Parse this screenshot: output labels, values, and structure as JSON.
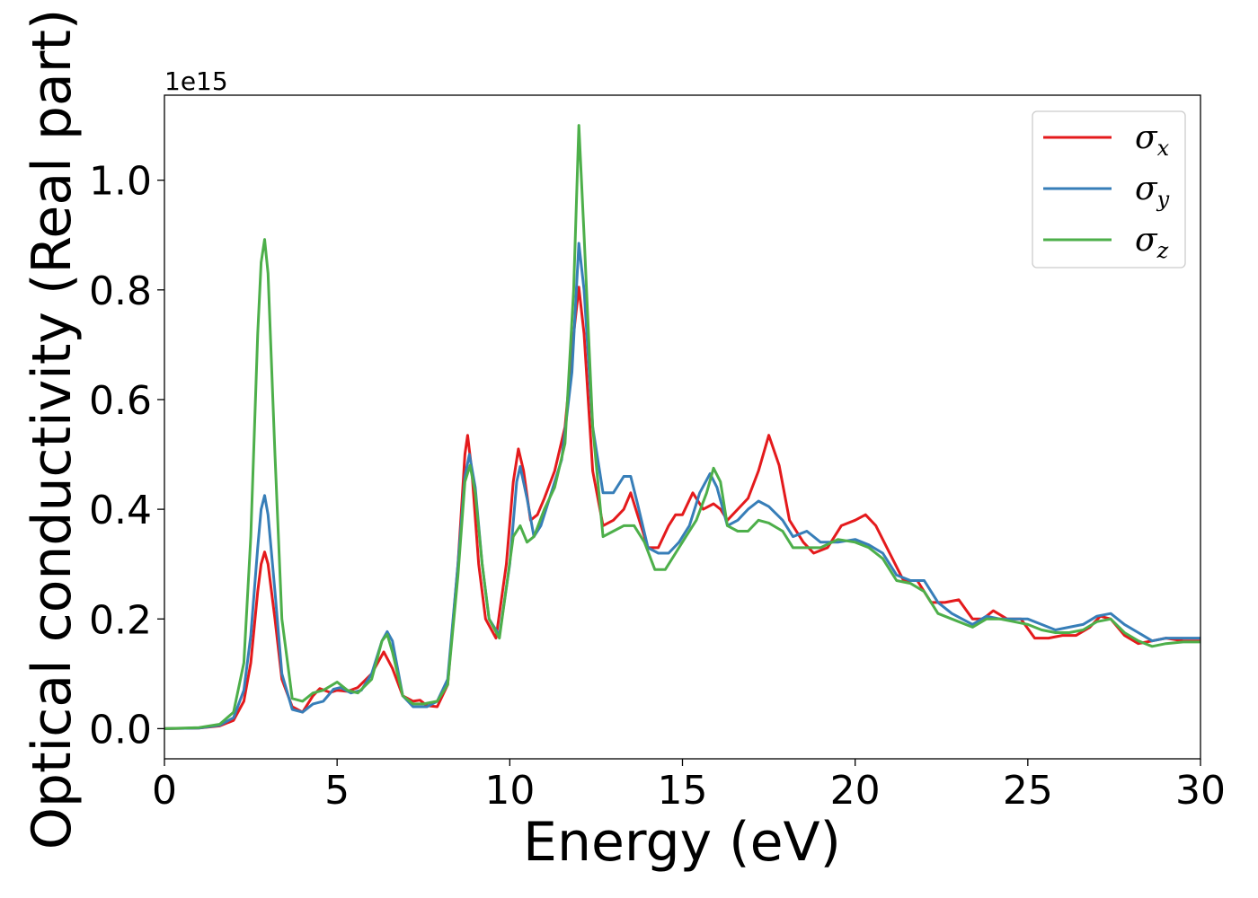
{
  "chart_data": {
    "type": "line",
    "title": "",
    "xlabel": "Energy (eV)",
    "ylabel": "Optical conductivity (Real part)",
    "y_offset_label": "1e15",
    "y_scale_factor": 1000000000000000.0,
    "xlim": [
      0,
      30
    ],
    "ylim": [
      -0.055,
      1.155
    ],
    "xticks": [
      0,
      5,
      10,
      15,
      20,
      25,
      30
    ],
    "xtick_labels": [
      "0",
      "5",
      "10",
      "15",
      "20",
      "25",
      "30"
    ],
    "yticks": [
      0.0,
      0.2,
      0.4,
      0.6,
      0.8,
      1.0
    ],
    "ytick_labels": [
      "0.0",
      "0.2",
      "0.4",
      "0.6",
      "0.8",
      "1.0"
    ],
    "grid": false,
    "legend_position": "top-right",
    "series": [
      {
        "name": "σx",
        "name_main": "σ",
        "name_sub": "x",
        "color": "#e41a1c",
        "points": [
          [
            0,
            0
          ],
          [
            1,
            0.001
          ],
          [
            1.6,
            0.005
          ],
          [
            2.0,
            0.015
          ],
          [
            2.3,
            0.05
          ],
          [
            2.5,
            0.12
          ],
          [
            2.7,
            0.25
          ],
          [
            2.8,
            0.3
          ],
          [
            2.9,
            0.322
          ],
          [
            3.0,
            0.3
          ],
          [
            3.2,
            0.2
          ],
          [
            3.4,
            0.09
          ],
          [
            3.7,
            0.04
          ],
          [
            4.0,
            0.03
          ],
          [
            4.3,
            0.06
          ],
          [
            4.5,
            0.073
          ],
          [
            4.8,
            0.066
          ],
          [
            5.0,
            0.07
          ],
          [
            5.3,
            0.068
          ],
          [
            5.6,
            0.075
          ],
          [
            6.0,
            0.1
          ],
          [
            6.35,
            0.14
          ],
          [
            6.6,
            0.11
          ],
          [
            6.9,
            0.06
          ],
          [
            7.2,
            0.05
          ],
          [
            7.4,
            0.052
          ],
          [
            7.6,
            0.042
          ],
          [
            7.9,
            0.04
          ],
          [
            8.2,
            0.08
          ],
          [
            8.5,
            0.3
          ],
          [
            8.7,
            0.5
          ],
          [
            8.78,
            0.535
          ],
          [
            8.9,
            0.47
          ],
          [
            9.1,
            0.3
          ],
          [
            9.3,
            0.2
          ],
          [
            9.6,
            0.165
          ],
          [
            9.9,
            0.3
          ],
          [
            10.1,
            0.45
          ],
          [
            10.25,
            0.51
          ],
          [
            10.4,
            0.47
          ],
          [
            10.6,
            0.38
          ],
          [
            10.8,
            0.39
          ],
          [
            11.0,
            0.42
          ],
          [
            11.3,
            0.47
          ],
          [
            11.6,
            0.55
          ],
          [
            11.85,
            0.72
          ],
          [
            12.0,
            0.805
          ],
          [
            12.15,
            0.72
          ],
          [
            12.4,
            0.47
          ],
          [
            12.7,
            0.37
          ],
          [
            13.0,
            0.38
          ],
          [
            13.3,
            0.4
          ],
          [
            13.5,
            0.43
          ],
          [
            13.7,
            0.39
          ],
          [
            14.0,
            0.33
          ],
          [
            14.3,
            0.33
          ],
          [
            14.6,
            0.37
          ],
          [
            14.8,
            0.39
          ],
          [
            15.0,
            0.39
          ],
          [
            15.3,
            0.43
          ],
          [
            15.6,
            0.4
          ],
          [
            15.9,
            0.41
          ],
          [
            16.1,
            0.4
          ],
          [
            16.3,
            0.38
          ],
          [
            16.6,
            0.4
          ],
          [
            16.9,
            0.42
          ],
          [
            17.2,
            0.47
          ],
          [
            17.5,
            0.535
          ],
          [
            17.8,
            0.48
          ],
          [
            18.1,
            0.38
          ],
          [
            18.5,
            0.34
          ],
          [
            18.8,
            0.32
          ],
          [
            19.2,
            0.33
          ],
          [
            19.6,
            0.37
          ],
          [
            20.0,
            0.38
          ],
          [
            20.3,
            0.39
          ],
          [
            20.6,
            0.37
          ],
          [
            21.0,
            0.32
          ],
          [
            21.4,
            0.27
          ],
          [
            21.8,
            0.27
          ],
          [
            22.2,
            0.23
          ],
          [
            22.6,
            0.23
          ],
          [
            23.0,
            0.235
          ],
          [
            23.4,
            0.2
          ],
          [
            23.7,
            0.2
          ],
          [
            24.0,
            0.215
          ],
          [
            24.4,
            0.2
          ],
          [
            24.8,
            0.2
          ],
          [
            25.2,
            0.165
          ],
          [
            25.6,
            0.165
          ],
          [
            26.0,
            0.17
          ],
          [
            26.4,
            0.17
          ],
          [
            26.8,
            0.185
          ],
          [
            27.1,
            0.205
          ],
          [
            27.4,
            0.2
          ],
          [
            27.8,
            0.17
          ],
          [
            28.2,
            0.155
          ],
          [
            28.6,
            0.16
          ],
          [
            29.0,
            0.165
          ],
          [
            29.5,
            0.16
          ],
          [
            30.0,
            0.16
          ]
        ]
      },
      {
        "name": "σy",
        "name_main": "σ",
        "name_sub": "y",
        "color": "#377eb8",
        "points": [
          [
            0,
            0
          ],
          [
            1,
            0.001
          ],
          [
            1.6,
            0.006
          ],
          [
            2.0,
            0.02
          ],
          [
            2.3,
            0.07
          ],
          [
            2.5,
            0.17
          ],
          [
            2.7,
            0.33
          ],
          [
            2.8,
            0.4
          ],
          [
            2.9,
            0.425
          ],
          [
            3.0,
            0.39
          ],
          [
            3.2,
            0.25
          ],
          [
            3.4,
            0.1
          ],
          [
            3.7,
            0.035
          ],
          [
            4.0,
            0.03
          ],
          [
            4.3,
            0.045
          ],
          [
            4.6,
            0.05
          ],
          [
            4.9,
            0.072
          ],
          [
            5.1,
            0.075
          ],
          [
            5.4,
            0.065
          ],
          [
            5.7,
            0.07
          ],
          [
            6.0,
            0.1
          ],
          [
            6.3,
            0.16
          ],
          [
            6.45,
            0.177
          ],
          [
            6.6,
            0.16
          ],
          [
            6.9,
            0.06
          ],
          [
            7.2,
            0.04
          ],
          [
            7.6,
            0.04
          ],
          [
            7.9,
            0.05
          ],
          [
            8.2,
            0.09
          ],
          [
            8.5,
            0.3
          ],
          [
            8.7,
            0.46
          ],
          [
            8.83,
            0.5
          ],
          [
            9.0,
            0.44
          ],
          [
            9.2,
            0.3
          ],
          [
            9.4,
            0.2
          ],
          [
            9.7,
            0.17
          ],
          [
            10.0,
            0.3
          ],
          [
            10.2,
            0.45
          ],
          [
            10.3,
            0.478
          ],
          [
            10.5,
            0.42
          ],
          [
            10.7,
            0.35
          ],
          [
            10.9,
            0.37
          ],
          [
            11.2,
            0.43
          ],
          [
            11.5,
            0.49
          ],
          [
            11.8,
            0.65
          ],
          [
            12.0,
            0.885
          ],
          [
            12.15,
            0.8
          ],
          [
            12.4,
            0.55
          ],
          [
            12.7,
            0.43
          ],
          [
            13.0,
            0.43
          ],
          [
            13.3,
            0.46
          ],
          [
            13.5,
            0.46
          ],
          [
            13.7,
            0.41
          ],
          [
            14.0,
            0.33
          ],
          [
            14.3,
            0.32
          ],
          [
            14.6,
            0.32
          ],
          [
            14.9,
            0.34
          ],
          [
            15.2,
            0.37
          ],
          [
            15.5,
            0.43
          ],
          [
            15.8,
            0.465
          ],
          [
            16.0,
            0.44
          ],
          [
            16.3,
            0.37
          ],
          [
            16.6,
            0.38
          ],
          [
            16.9,
            0.4
          ],
          [
            17.2,
            0.415
          ],
          [
            17.5,
            0.405
          ],
          [
            17.9,
            0.38
          ],
          [
            18.2,
            0.35
          ],
          [
            18.6,
            0.36
          ],
          [
            19.0,
            0.34
          ],
          [
            19.5,
            0.34
          ],
          [
            20.0,
            0.345
          ],
          [
            20.4,
            0.335
          ],
          [
            20.8,
            0.32
          ],
          [
            21.2,
            0.28
          ],
          [
            21.6,
            0.27
          ],
          [
            22.0,
            0.27
          ],
          [
            22.4,
            0.23
          ],
          [
            22.8,
            0.21
          ],
          [
            23.4,
            0.19
          ],
          [
            23.8,
            0.205
          ],
          [
            24.2,
            0.2
          ],
          [
            24.6,
            0.2
          ],
          [
            25.0,
            0.2
          ],
          [
            25.4,
            0.19
          ],
          [
            25.8,
            0.18
          ],
          [
            26.2,
            0.185
          ],
          [
            26.6,
            0.19
          ],
          [
            27.0,
            0.205
          ],
          [
            27.4,
            0.21
          ],
          [
            27.8,
            0.19
          ],
          [
            28.2,
            0.175
          ],
          [
            28.6,
            0.16
          ],
          [
            29.0,
            0.165
          ],
          [
            29.5,
            0.165
          ],
          [
            30.0,
            0.165
          ]
        ]
      },
      {
        "name": "σz",
        "name_main": "σ",
        "name_sub": "z",
        "color": "#4daf4a",
        "points": [
          [
            0,
            0
          ],
          [
            1,
            0.002
          ],
          [
            1.6,
            0.008
          ],
          [
            2.0,
            0.03
          ],
          [
            2.3,
            0.12
          ],
          [
            2.5,
            0.35
          ],
          [
            2.7,
            0.72
          ],
          [
            2.8,
            0.85
          ],
          [
            2.9,
            0.892
          ],
          [
            3.0,
            0.83
          ],
          [
            3.2,
            0.5
          ],
          [
            3.4,
            0.2
          ],
          [
            3.7,
            0.055
          ],
          [
            4.0,
            0.05
          ],
          [
            4.3,
            0.065
          ],
          [
            4.6,
            0.07
          ],
          [
            5.0,
            0.085
          ],
          [
            5.3,
            0.07
          ],
          [
            5.6,
            0.065
          ],
          [
            6.0,
            0.09
          ],
          [
            6.3,
            0.16
          ],
          [
            6.45,
            0.172
          ],
          [
            6.6,
            0.14
          ],
          [
            6.9,
            0.06
          ],
          [
            7.2,
            0.045
          ],
          [
            7.5,
            0.045
          ],
          [
            7.9,
            0.05
          ],
          [
            8.2,
            0.08
          ],
          [
            8.5,
            0.28
          ],
          [
            8.7,
            0.45
          ],
          [
            8.85,
            0.48
          ],
          [
            9.0,
            0.43
          ],
          [
            9.2,
            0.3
          ],
          [
            9.4,
            0.2
          ],
          [
            9.7,
            0.165
          ],
          [
            9.95,
            0.28
          ],
          [
            10.1,
            0.35
          ],
          [
            10.3,
            0.37
          ],
          [
            10.5,
            0.34
          ],
          [
            10.7,
            0.35
          ],
          [
            11.0,
            0.4
          ],
          [
            11.3,
            0.44
          ],
          [
            11.6,
            0.52
          ],
          [
            11.85,
            0.8
          ],
          [
            12.0,
            1.1
          ],
          [
            12.15,
            0.9
          ],
          [
            12.4,
            0.55
          ],
          [
            12.7,
            0.35
          ],
          [
            13.0,
            0.36
          ],
          [
            13.3,
            0.37
          ],
          [
            13.6,
            0.37
          ],
          [
            13.9,
            0.34
          ],
          [
            14.2,
            0.29
          ],
          [
            14.5,
            0.29
          ],
          [
            14.8,
            0.32
          ],
          [
            15.1,
            0.35
          ],
          [
            15.4,
            0.38
          ],
          [
            15.7,
            0.43
          ],
          [
            15.9,
            0.475
          ],
          [
            16.1,
            0.45
          ],
          [
            16.3,
            0.37
          ],
          [
            16.6,
            0.36
          ],
          [
            16.9,
            0.36
          ],
          [
            17.2,
            0.38
          ],
          [
            17.5,
            0.375
          ],
          [
            17.9,
            0.36
          ],
          [
            18.2,
            0.33
          ],
          [
            18.6,
            0.33
          ],
          [
            19.0,
            0.33
          ],
          [
            19.5,
            0.345
          ],
          [
            20.0,
            0.34
          ],
          [
            20.4,
            0.33
          ],
          [
            20.8,
            0.31
          ],
          [
            21.2,
            0.27
          ],
          [
            21.6,
            0.265
          ],
          [
            22.0,
            0.25
          ],
          [
            22.4,
            0.21
          ],
          [
            22.8,
            0.2
          ],
          [
            23.4,
            0.185
          ],
          [
            23.8,
            0.2
          ],
          [
            24.2,
            0.2
          ],
          [
            24.6,
            0.195
          ],
          [
            25.0,
            0.19
          ],
          [
            25.4,
            0.18
          ],
          [
            25.8,
            0.175
          ],
          [
            26.2,
            0.175
          ],
          [
            26.6,
            0.18
          ],
          [
            27.0,
            0.195
          ],
          [
            27.4,
            0.2
          ],
          [
            27.8,
            0.175
          ],
          [
            28.2,
            0.16
          ],
          [
            28.6,
            0.15
          ],
          [
            29.0,
            0.155
          ],
          [
            29.5,
            0.158
          ],
          [
            30.0,
            0.158
          ]
        ]
      }
    ]
  }
}
